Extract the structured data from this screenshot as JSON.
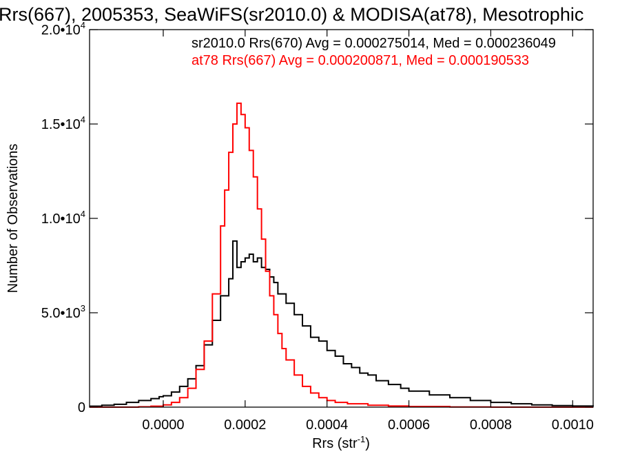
{
  "chart_data": {
    "type": "line",
    "title": "Rrs(667), 2005353, SeaWiFS(sr2010.0) & MODISA(at78), Mesotrophic",
    "xlabel": "Rrs (str",
    "xlabel_sup": "-1",
    "xlabel_end": ")",
    "ylabel": "Number of Observations",
    "xlim": [
      -0.00018,
      0.00105
    ],
    "ylim": [
      0,
      20000
    ],
    "x_ticks": [
      0.0,
      0.0002,
      0.0004,
      0.0006,
      0.0008,
      0.001
    ],
    "x_tick_labels": [
      "0.0000",
      "0.0002",
      "0.0004",
      "0.0006",
      "0.0008",
      "0.0010"
    ],
    "y_ticks": [
      {
        "value": 0,
        "mantissa": "0",
        "exponent": ""
      },
      {
        "value": 5000,
        "mantissa": "5.0•10",
        "exponent": "3"
      },
      {
        "value": 10000,
        "mantissa": "1.0•10",
        "exponent": "4"
      },
      {
        "value": 15000,
        "mantissa": "1.5•10",
        "exponent": "4"
      },
      {
        "value": 20000,
        "mantissa": "2.0•10",
        "exponent": "4"
      }
    ],
    "annotations": [
      "sr2010.0 Rrs(670) Avg = 0.000275014, Med = 0.000236049",
      "at78 Rrs(667) Avg = 0.000200871, Med = 0.000190533"
    ],
    "grid": false,
    "series": [
      {
        "name": "sr2010.0 Rrs(670)",
        "color": "#000000",
        "x": [
          -0.00018,
          -0.00015,
          -0.00012,
          -9e-05,
          -6e-05,
          -3e-05,
          -1e-05,
          0.0,
          2e-05,
          4e-05,
          6e-05,
          8e-05,
          0.0001,
          0.00012,
          0.00014,
          0.00016,
          0.00017,
          0.00018,
          0.00019,
          0.0002,
          0.00021,
          0.00022,
          0.00023,
          0.00024,
          0.00025,
          0.00026,
          0.00027,
          0.00028,
          0.0003,
          0.00032,
          0.00034,
          0.00036,
          0.00038,
          0.0004,
          0.00042,
          0.00044,
          0.00046,
          0.00048,
          0.0005,
          0.00052,
          0.00055,
          0.00058,
          0.0006,
          0.00065,
          0.0007,
          0.00075,
          0.0008,
          0.00085,
          0.0009,
          0.00095,
          0.001,
          0.00105
        ],
        "y": [
          50,
          100,
          150,
          250,
          350,
          450,
          550,
          600,
          800,
          1100,
          1500,
          2200,
          3300,
          4600,
          5900,
          6800,
          8800,
          7400,
          7700,
          7900,
          8100,
          7700,
          7900,
          7400,
          7300,
          6900,
          6600,
          6000,
          5500,
          4900,
          4300,
          3700,
          3500,
          3000,
          2700,
          2300,
          2100,
          1800,
          1700,
          1400,
          1200,
          1000,
          850,
          650,
          500,
          350,
          250,
          180,
          120,
          80,
          60,
          40
        ]
      },
      {
        "name": "at78 Rrs(667)",
        "color": "#ff0000",
        "x": [
          -0.00018,
          -0.00015,
          -0.00012,
          -9e-05,
          -6e-05,
          -3e-05,
          0.0,
          2e-05,
          4e-05,
          6e-05,
          8e-05,
          0.0001,
          0.00012,
          0.00014,
          0.00015,
          0.00016,
          0.00017,
          0.00018,
          0.00019,
          0.0002,
          0.00021,
          0.00022,
          0.00023,
          0.00024,
          0.00025,
          0.00026,
          0.00027,
          0.00028,
          0.00029,
          0.0003,
          0.00032,
          0.00034,
          0.00036,
          0.00038,
          0.0004,
          0.00042,
          0.00045,
          0.0005,
          0.00055,
          0.0006,
          0.0007,
          0.0008,
          0.0009,
          0.001,
          0.00105
        ],
        "y": [
          0,
          0,
          0,
          0,
          20,
          50,
          120,
          250,
          500,
          1000,
          2000,
          3500,
          6000,
          9600,
          11500,
          13500,
          15000,
          16100,
          15500,
          14800,
          13600,
          12200,
          10500,
          8900,
          7200,
          5900,
          4900,
          3900,
          3100,
          2500,
          1700,
          1100,
          750,
          500,
          350,
          250,
          180,
          100,
          60,
          30,
          10,
          0,
          0,
          0,
          0
        ]
      }
    ]
  }
}
